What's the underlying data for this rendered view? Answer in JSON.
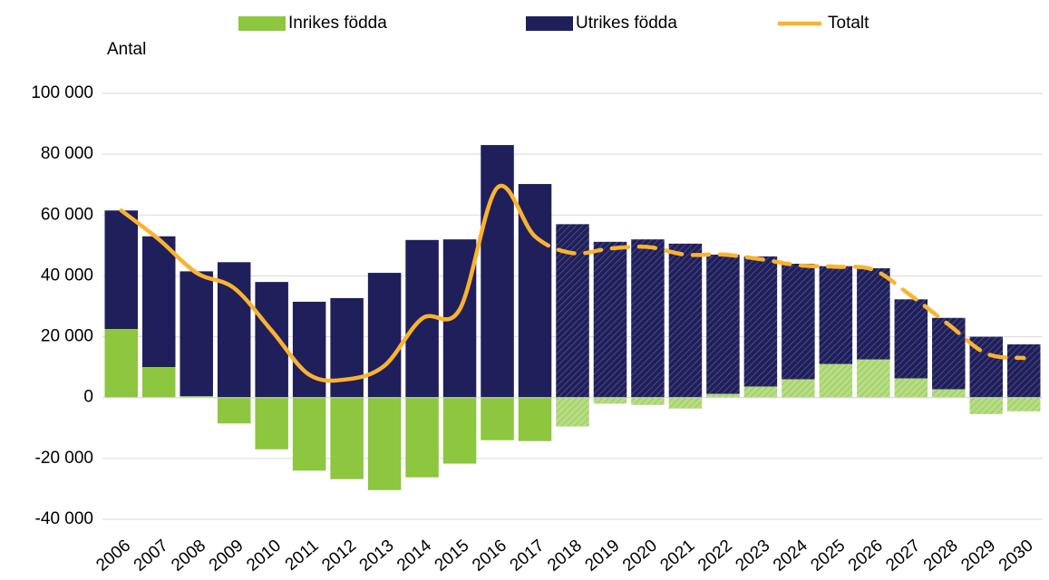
{
  "chart_data": {
    "type": "bar_line",
    "y_label": "Antal",
    "categories": [
      "2006",
      "2007",
      "2008",
      "2009",
      "2010",
      "2011",
      "2012",
      "2013",
      "2014",
      "2015",
      "2016",
      "2017",
      "2018",
      "2019",
      "2020",
      "2021",
      "2022",
      "2023",
      "2024",
      "2025",
      "2026",
      "2027",
      "2028",
      "2029",
      "2030"
    ],
    "series": [
      {
        "name": "Inrikes födda",
        "color": "#8dc63f",
        "kind": "bar",
        "values": [
          22500,
          10000,
          500,
          -8500,
          -17000,
          -24000,
          -26800,
          -30400,
          -26200,
          -21700,
          -14000,
          -14300,
          -9500,
          -2000,
          -2400,
          -3600,
          1200,
          3600,
          6000,
          11000,
          12500,
          6300,
          2700,
          -5400,
          -4500
        ]
      },
      {
        "name": "Utrikes födda",
        "color": "#1f1f5c",
        "kind": "bar",
        "values": [
          39000,
          43000,
          41000,
          44500,
          38000,
          31500,
          32700,
          41000,
          51800,
          52000,
          83000,
          70200,
          57000,
          51200,
          52000,
          50600,
          45800,
          42800,
          38000,
          32200,
          30000,
          26000,
          23500,
          20000,
          17500
        ]
      },
      {
        "name": "Totalt",
        "color": "#fbb32f",
        "kind": "line",
        "values": [
          61500,
          52000,
          41000,
          36000,
          22000,
          7500,
          6000,
          10500,
          26000,
          29000,
          69000,
          53000,
          47500,
          49000,
          49500,
          47000,
          47000,
          45500,
          43500,
          43000,
          42000,
          33500,
          24000,
          14500,
          13000
        ]
      }
    ],
    "forecast_from": "2018",
    "ylim": [
      -40000,
      100000
    ],
    "yticks": [
      {
        "value": -40000,
        "label": "-40 000"
      },
      {
        "value": -20000,
        "label": "-20 000"
      },
      0,
      {
        "value": 20000,
        "label": "20 000"
      },
      {
        "value": 40000,
        "label": "40 000"
      },
      {
        "value": 60000,
        "label": "60 000"
      },
      {
        "value": 80000,
        "label": "80 000"
      },
      {
        "value": 100000,
        "label": "100 000"
      }
    ],
    "grid": true,
    "legend": "top"
  }
}
